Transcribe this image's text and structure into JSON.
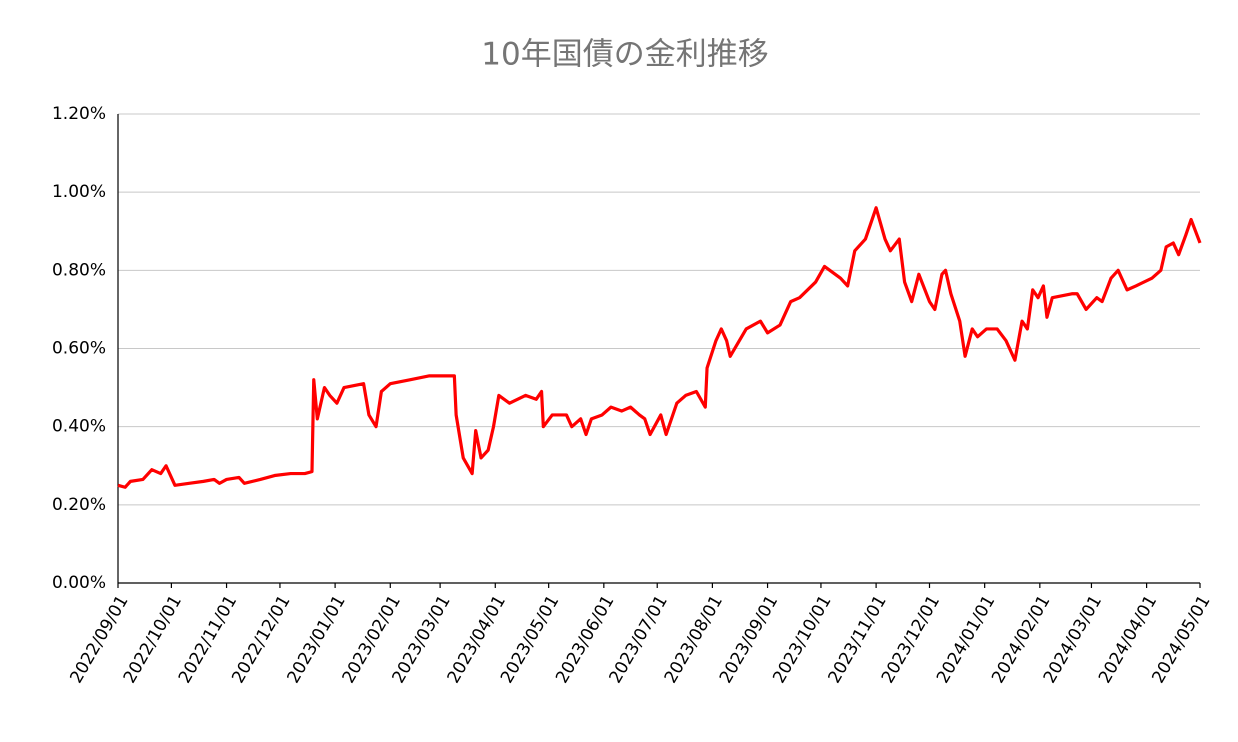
{
  "chart_data": {
    "type": "line",
    "title": "10年国債の金利推移",
    "x": [
      "2022/09/01",
      "2022/09/05",
      "2022/09/08",
      "2022/09/15",
      "2022/09/20",
      "2022/09/25",
      "2022/09/28",
      "2022/10/03",
      "2022/10/11",
      "2022/10/19",
      "2022/10/25",
      "2022/10/28",
      "2022/11/01",
      "2022/11/08",
      "2022/11/11",
      "2022/11/20",
      "2022/11/28",
      "2022/12/07",
      "2022/12/15",
      "2022/12/19",
      "2022/12/20",
      "2022/12/22",
      "2022/12/26",
      "2022/12/29",
      "2023/01/02",
      "2023/01/06",
      "2023/01/17",
      "2023/01/20",
      "2023/01/24",
      "2023/01/27",
      "2023/02/01",
      "2023/02/12",
      "2023/02/23",
      "2023/03/09",
      "2023/03/10",
      "2023/03/14",
      "2023/03/19",
      "2023/03/21",
      "2023/03/24",
      "2023/03/28",
      "2023/03/31",
      "2023/04/03",
      "2023/04/09",
      "2023/04/18",
      "2023/04/24",
      "2023/04/27",
      "2023/04/28",
      "2023/05/03",
      "2023/05/11",
      "2023/05/14",
      "2023/05/19",
      "2023/05/22",
      "2023/05/25",
      "2023/05/31",
      "2023/06/05",
      "2023/06/11",
      "2023/06/16",
      "2023/06/21",
      "2023/06/24",
      "2023/06/27",
      "2023/07/03",
      "2023/07/06",
      "2023/07/12",
      "2023/07/17",
      "2023/07/23",
      "2023/07/28",
      "2023/07/29",
      "2023/08/03",
      "2023/08/06",
      "2023/08/09",
      "2023/08/11",
      "2023/08/20",
      "2023/08/28",
      "2023/09/01",
      "2023/09/08",
      "2023/09/14",
      "2023/09/19",
      "2023/09/28",
      "2023/10/03",
      "2023/10/12",
      "2023/10/16",
      "2023/10/20",
      "2023/10/26",
      "2023/11/01",
      "2023/11/06",
      "2023/11/09",
      "2023/11/14",
      "2023/11/17",
      "2023/11/21",
      "2023/11/25",
      "2023/12/01",
      "2023/12/04",
      "2023/12/08",
      "2023/12/10",
      "2023/12/13",
      "2023/12/18",
      "2023/12/21",
      "2023/12/25",
      "2023/12/28",
      "2024/01/02",
      "2024/01/08",
      "2024/01/13",
      "2024/01/18",
      "2024/01/22",
      "2024/01/25",
      "2024/01/28",
      "2024/01/31",
      "2024/02/03",
      "2024/02/05",
      "2024/02/08",
      "2024/02/19",
      "2024/02/22",
      "2024/02/27",
      "2024/03/04",
      "2024/03/07",
      "2024/03/12",
      "2024/03/16",
      "2024/03/21",
      "2024/03/26",
      "2024/04/04",
      "2024/04/09",
      "2024/04/12",
      "2024/04/16",
      "2024/04/19",
      "2024/04/23",
      "2024/04/26",
      "2024/05/01"
    ],
    "series": [
      {
        "name": "10年国債",
        "color": "#ff0000",
        "values": [
          0.25,
          0.245,
          0.26,
          0.265,
          0.29,
          0.28,
          0.3,
          0.25,
          0.255,
          0.26,
          0.265,
          0.255,
          0.265,
          0.27,
          0.255,
          0.265,
          0.275,
          0.28,
          0.28,
          0.285,
          0.52,
          0.42,
          0.5,
          0.48,
          0.46,
          0.5,
          0.51,
          0.43,
          0.4,
          0.49,
          0.51,
          0.52,
          0.53,
          0.53,
          0.43,
          0.32,
          0.28,
          0.39,
          0.32,
          0.34,
          0.4,
          0.48,
          0.46,
          0.48,
          0.47,
          0.49,
          0.4,
          0.43,
          0.43,
          0.4,
          0.42,
          0.38,
          0.42,
          0.43,
          0.45,
          0.44,
          0.45,
          0.43,
          0.42,
          0.38,
          0.43,
          0.38,
          0.46,
          0.48,
          0.49,
          0.45,
          0.55,
          0.62,
          0.65,
          0.62,
          0.58,
          0.65,
          0.67,
          0.64,
          0.66,
          0.72,
          0.73,
          0.77,
          0.81,
          0.78,
          0.76,
          0.85,
          0.88,
          0.96,
          0.88,
          0.85,
          0.88,
          0.77,
          0.72,
          0.79,
          0.72,
          0.7,
          0.79,
          0.8,
          0.74,
          0.67,
          0.58,
          0.65,
          0.63,
          0.65,
          0.65,
          0.62,
          0.57,
          0.67,
          0.65,
          0.75,
          0.73,
          0.76,
          0.68,
          0.73,
          0.74,
          0.74,
          0.7,
          0.73,
          0.72,
          0.78,
          0.8,
          0.75,
          0.76,
          0.78,
          0.8,
          0.86,
          0.87,
          0.84,
          0.89,
          0.93,
          0.87
        ]
      }
    ],
    "xlim": [
      "2022/09/01",
      "2024/05/01"
    ],
    "xticks": [
      "2022/09/01",
      "2022/10/01",
      "2022/11/01",
      "2022/12/01",
      "2023/01/01",
      "2023/02/01",
      "2023/03/01",
      "2023/04/01",
      "2023/05/01",
      "2023/06/01",
      "2023/07/01",
      "2023/08/01",
      "2023/09/01",
      "2023/10/01",
      "2023/11/01",
      "2023/12/01",
      "2024/01/01",
      "2024/02/01",
      "2024/03/01",
      "2024/04/01",
      "2024/05/01"
    ],
    "ylim": [
      0,
      1.2
    ],
    "yticks": [
      {
        "value": 0,
        "label": "0.00%"
      },
      {
        "value": 0.2,
        "label": "0.20%"
      },
      {
        "value": 0.4,
        "label": "0.40%"
      },
      {
        "value": 0.6,
        "label": "0.60%"
      },
      {
        "value": 0.8,
        "label": "0.80%"
      },
      {
        "value": 1.0,
        "label": "1.00%"
      },
      {
        "value": 1.2,
        "label": "1.20%"
      }
    ],
    "grid": true
  }
}
